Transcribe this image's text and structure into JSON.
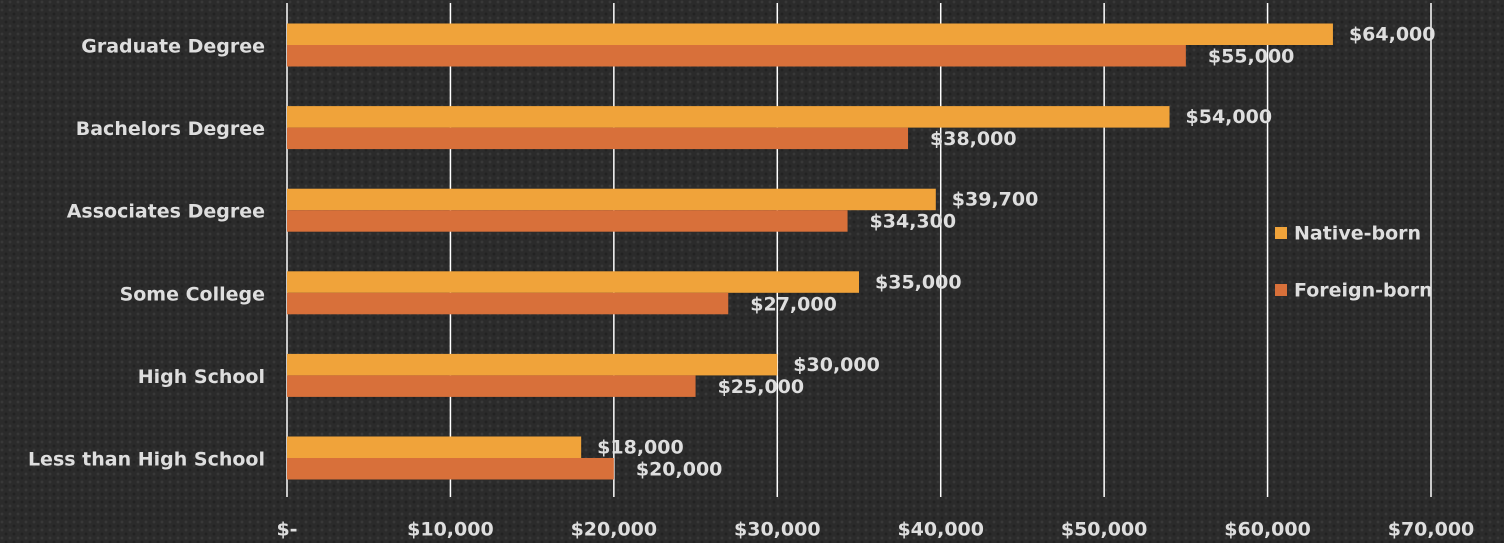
{
  "chart_data": {
    "type": "bar",
    "orientation": "horizontal",
    "categories": [
      "Graduate Degree",
      "Bachelors Degree",
      "Associates Degree",
      "Some College",
      "High School",
      "Less than High School"
    ],
    "series": [
      {
        "name": "Native-born",
        "color": "#f0a33a",
        "values": [
          64000,
          54000,
          39700,
          35000,
          30000,
          18000
        ],
        "value_labels": [
          "$64,000",
          "$54,000",
          "$39,700",
          "$35,000",
          "$30,000",
          "$18,000"
        ]
      },
      {
        "name": "Foreign-born",
        "color": "#d8703a",
        "values": [
          55000,
          38000,
          34300,
          27000,
          25000,
          20000
        ],
        "value_labels": [
          "$55,000",
          "$38,000",
          "$34,300",
          "$27,000",
          "$25,000",
          "$20,000"
        ]
      }
    ],
    "xlim": [
      0,
      70000
    ],
    "xticks": [
      {
        "value": 0,
        "label": "$-"
      },
      {
        "value": 10000,
        "label": "$10,000"
      },
      {
        "value": 20000,
        "label": "$20,000"
      },
      {
        "value": 30000,
        "label": "$30,000"
      },
      {
        "value": 40000,
        "label": "$40,000"
      },
      {
        "value": 50000,
        "label": "$50,000"
      },
      {
        "value": 60000,
        "label": "$60,000"
      },
      {
        "value": 70000,
        "label": "$70,000"
      }
    ],
    "grid": true,
    "legend": "right"
  }
}
